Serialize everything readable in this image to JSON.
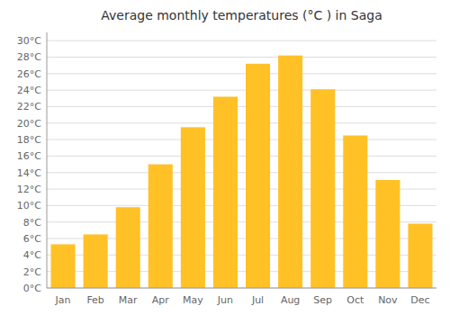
{
  "chart_data": {
    "type": "bar",
    "title": "Average monthly temperatures (°C ) in Saga",
    "categories": [
      "Jan",
      "Feb",
      "Mar",
      "Apr",
      "May",
      "Jun",
      "Jul",
      "Aug",
      "Sep",
      "Oct",
      "Nov",
      "Dec"
    ],
    "values": [
      5.3,
      6.5,
      9.8,
      15.0,
      19.5,
      23.2,
      27.2,
      28.2,
      24.1,
      18.5,
      13.1,
      7.8
    ],
    "color": "#FFC125",
    "ylim": [
      0,
      31
    ],
    "yticks": [
      {
        "value": 0,
        "label": "0°C"
      },
      {
        "value": 2,
        "label": "2°C"
      },
      {
        "value": 4,
        "label": "4°C"
      },
      {
        "value": 6,
        "label": "6°C"
      },
      {
        "value": 8,
        "label": "8°C"
      },
      {
        "value": 10,
        "label": "10°C"
      },
      {
        "value": 12,
        "label": "12°C"
      },
      {
        "value": 14,
        "label": "14°C"
      },
      {
        "value": 16,
        "label": "16°C"
      },
      {
        "value": 18,
        "label": "18°C"
      },
      {
        "value": 20,
        "label": "20°C"
      },
      {
        "value": 22,
        "label": "22°C"
      },
      {
        "value": 24,
        "label": "24°C"
      },
      {
        "value": 26,
        "label": "26°C"
      },
      {
        "value": 28,
        "label": "28°C"
      },
      {
        "value": 30,
        "label": "30°C"
      }
    ],
    "grid": true
  }
}
